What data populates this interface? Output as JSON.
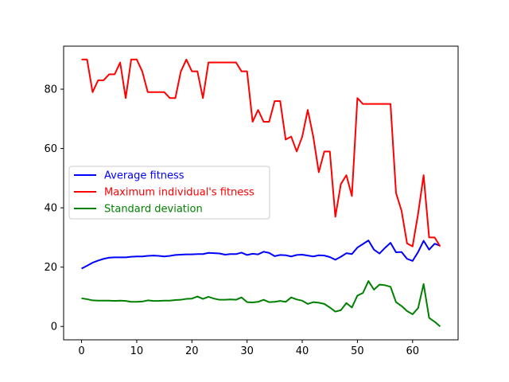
{
  "chart_data": {
    "type": "line",
    "title": "",
    "xlabel": "",
    "ylabel": "",
    "xlim": [
      -3.25,
      68.25
    ],
    "ylim": [
      -4.5,
      94.5
    ],
    "x_ticks": [
      0,
      10,
      20,
      30,
      40,
      50,
      60
    ],
    "y_ticks": [
      0,
      20,
      40,
      60,
      80
    ],
    "grid": false,
    "legend_placement": "center-left",
    "x": [
      0,
      1,
      2,
      3,
      4,
      5,
      6,
      7,
      8,
      9,
      10,
      11,
      12,
      13,
      14,
      15,
      16,
      17,
      18,
      19,
      20,
      21,
      22,
      23,
      24,
      25,
      26,
      27,
      28,
      29,
      30,
      31,
      32,
      33,
      34,
      35,
      36,
      37,
      38,
      39,
      40,
      41,
      42,
      43,
      44,
      45,
      46,
      47,
      48,
      49,
      50,
      51,
      52,
      53,
      54,
      55,
      56,
      57,
      58,
      59,
      60,
      61,
      62,
      63,
      64,
      65
    ],
    "series": [
      {
        "name": "Average fitness",
        "color": "#0000ff",
        "values": [
          19.5,
          20.5,
          21.5,
          22.2,
          22.8,
          23.2,
          23.3,
          23.3,
          23.3,
          23.5,
          23.6,
          23.6,
          23.8,
          23.9,
          23.8,
          23.6,
          23.8,
          24.1,
          24.2,
          24.3,
          24.3,
          24.4,
          24.4,
          24.8,
          24.7,
          24.6,
          24.2,
          24.4,
          24.4,
          24.9,
          24.1,
          24.5,
          24.3,
          25.2,
          24.8,
          23.7,
          24.1,
          24.0,
          23.6,
          24.1,
          24.2,
          23.9,
          23.6,
          24.0,
          23.9,
          23.4,
          22.5,
          23.5,
          24.7,
          24.4,
          26.6,
          27.8,
          29.0,
          25.9,
          24.6,
          26.5,
          28.2,
          25.0,
          25.1,
          22.8,
          22.1,
          25.1,
          28.9,
          25.9,
          27.9,
          27.2
        ]
      },
      {
        "name": "Maximum individual's fitness",
        "color": "#ff0000",
        "values": [
          90,
          90,
          79,
          83,
          83,
          85,
          85,
          89,
          77,
          90,
          90,
          86,
          79,
          79,
          79,
          79,
          77,
          77,
          86,
          90,
          86,
          86,
          77,
          89,
          89,
          89,
          89,
          89,
          89,
          86,
          86,
          69,
          73,
          69,
          69,
          76,
          76,
          63,
          64,
          59,
          64,
          73,
          64,
          52,
          59,
          59,
          37,
          48,
          51,
          44,
          77,
          75,
          75,
          75,
          75,
          75,
          75,
          45,
          39,
          28,
          27,
          38,
          51,
          30,
          30,
          27
        ]
      },
      {
        "name": "Standard deviation",
        "color": "#008000",
        "values": [
          9.5,
          9.2,
          8.8,
          8.7,
          8.7,
          8.7,
          8.6,
          8.7,
          8.6,
          8.3,
          8.3,
          8.4,
          8.8,
          8.6,
          8.6,
          8.7,
          8.7,
          8.9,
          9.0,
          9.3,
          9.4,
          10.1,
          9.3,
          10.0,
          9.4,
          9.0,
          9.0,
          9.1,
          9.0,
          9.8,
          8.2,
          8.1,
          8.3,
          9.0,
          8.2,
          8.3,
          8.6,
          8.3,
          9.8,
          9.1,
          8.7,
          7.6,
          8.2,
          8.0,
          7.6,
          6.4,
          5.0,
          5.5,
          7.9,
          6.4,
          10.4,
          11.3,
          15.3,
          12.4,
          14.1,
          13.9,
          13.4,
          8.2,
          6.9,
          5.2,
          4.1,
          6.2,
          14.3,
          2.9,
          1.6,
          0.0
        ]
      }
    ]
  }
}
